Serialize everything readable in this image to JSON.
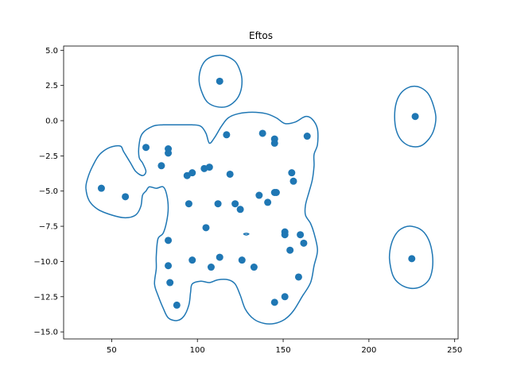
{
  "chart_data": {
    "type": "scatter",
    "title": "Eftos",
    "xlabel": "",
    "ylabel": "",
    "xlim": [
      22,
      252
    ],
    "ylim": [
      -15.5,
      5.3
    ],
    "xticks": [
      50,
      100,
      150,
      200,
      250
    ],
    "yticks": [
      5.0,
      2.5,
      0.0,
      -2.5,
      -5.0,
      -7.5,
      -10.0,
      -12.5,
      -15.0
    ],
    "xtick_labels": [
      "50",
      "100",
      "150",
      "200",
      "250"
    ],
    "ytick_labels": [
      "5.0",
      "2.5",
      "0.0",
      "−2.5",
      "−5.0",
      "−7.5",
      "−10.0",
      "−12.5",
      "−15.0"
    ],
    "grid": false,
    "color": "#1f77b4",
    "points": [
      {
        "x": 113,
        "y": 2.8
      },
      {
        "x": 227,
        "y": 0.3
      },
      {
        "x": 225,
        "y": -9.8
      },
      {
        "x": 44,
        "y": -4.8
      },
      {
        "x": 58,
        "y": -5.4
      },
      {
        "x": 70,
        "y": -1.9
      },
      {
        "x": 83,
        "y": -2.0
      },
      {
        "x": 83,
        "y": -2.3
      },
      {
        "x": 79,
        "y": -3.2
      },
      {
        "x": 94,
        "y": -3.9
      },
      {
        "x": 97,
        "y": -3.7
      },
      {
        "x": 104,
        "y": -3.4
      },
      {
        "x": 107,
        "y": -3.3
      },
      {
        "x": 117,
        "y": -1.0
      },
      {
        "x": 119,
        "y": -3.8
      },
      {
        "x": 138,
        "y": -0.9
      },
      {
        "x": 145,
        "y": -1.3
      },
      {
        "x": 145,
        "y": -1.6
      },
      {
        "x": 164,
        "y": -1.1
      },
      {
        "x": 155,
        "y": -3.7
      },
      {
        "x": 156,
        "y": -4.3
      },
      {
        "x": 136,
        "y": -5.3
      },
      {
        "x": 145,
        "y": -5.1
      },
      {
        "x": 146,
        "y": -5.1
      },
      {
        "x": 141,
        "y": -5.8
      },
      {
        "x": 122,
        "y": -5.9
      },
      {
        "x": 125,
        "y": -6.3
      },
      {
        "x": 112,
        "y": -5.9
      },
      {
        "x": 95,
        "y": -5.9
      },
      {
        "x": 105,
        "y": -7.6
      },
      {
        "x": 83,
        "y": -8.5
      },
      {
        "x": 151,
        "y": -7.9
      },
      {
        "x": 151,
        "y": -8.1
      },
      {
        "x": 160,
        "y": -8.1
      },
      {
        "x": 162,
        "y": -8.7
      },
      {
        "x": 154,
        "y": -9.2
      },
      {
        "x": 113,
        "y": -9.7
      },
      {
        "x": 97,
        "y": -9.9
      },
      {
        "x": 126,
        "y": -9.9
      },
      {
        "x": 108,
        "y": -10.4
      },
      {
        "x": 133,
        "y": -10.4
      },
      {
        "x": 83,
        "y": -10.3
      },
      {
        "x": 159,
        "y": -11.1
      },
      {
        "x": 84,
        "y": -11.5
      },
      {
        "x": 151,
        "y": -12.5
      },
      {
        "x": 145,
        "y": -12.9
      },
      {
        "x": 88,
        "y": -13.1
      }
    ],
    "contours": [
      [
        [
          57,
          -2.2
        ],
        [
          55,
          -1.8
        ],
        [
          49,
          -1.9
        ],
        [
          43,
          -2.4
        ],
        [
          39,
          -3.2
        ],
        [
          36,
          -4.1
        ],
        [
          35,
          -4.8
        ],
        [
          37,
          -5.7
        ],
        [
          42,
          -6.3
        ],
        [
          50,
          -6.7
        ],
        [
          58,
          -6.9
        ],
        [
          64,
          -6.7
        ],
        [
          67,
          -6.1
        ],
        [
          68,
          -5.3
        ],
        [
          70,
          -5.0
        ],
        [
          72,
          -4.7
        ],
        [
          76,
          -4.8
        ],
        [
          80,
          -4.7
        ],
        [
          82,
          -5.2
        ],
        [
          83,
          -6.2
        ],
        [
          82,
          -7.2
        ],
        [
          80,
          -8.0
        ],
        [
          77,
          -8.4
        ],
        [
          76,
          -9.6
        ],
        [
          76,
          -10.5
        ],
        [
          75,
          -11.6
        ],
        [
          77,
          -12.4
        ],
        [
          80,
          -13.3
        ],
        [
          83,
          -14.0
        ],
        [
          88,
          -14.2
        ],
        [
          92,
          -13.9
        ],
        [
          95,
          -13.1
        ],
        [
          96,
          -12.2
        ],
        [
          97,
          -11.6
        ],
        [
          102,
          -11.4
        ],
        [
          107,
          -11.5
        ],
        [
          112,
          -11.3
        ],
        [
          118,
          -11.3
        ],
        [
          122,
          -11.6
        ],
        [
          125,
          -12.4
        ],
        [
          128,
          -13.4
        ],
        [
          133,
          -14.1
        ],
        [
          139,
          -14.4
        ],
        [
          145,
          -14.4
        ],
        [
          151,
          -14.1
        ],
        [
          156,
          -13.5
        ],
        [
          161,
          -12.5
        ],
        [
          166,
          -11.5
        ],
        [
          168,
          -10.3
        ],
        [
          170,
          -9.2
        ],
        [
          168,
          -8.0
        ],
        [
          166,
          -7.3
        ],
        [
          163,
          -6.7
        ],
        [
          163,
          -6.0
        ],
        [
          165,
          -5.1
        ],
        [
          167,
          -4.2
        ],
        [
          168,
          -3.2
        ],
        [
          168,
          -2.4
        ],
        [
          170,
          -1.7
        ],
        [
          170,
          -0.6
        ],
        [
          167,
          0.1
        ],
        [
          163,
          0.3
        ],
        [
          157,
          -0.1
        ],
        [
          151,
          -0.2
        ],
        [
          146,
          0.2
        ],
        [
          140,
          0.5
        ],
        [
          132,
          0.6
        ],
        [
          124,
          0.5
        ],
        [
          118,
          0.2
        ],
        [
          114,
          -0.4
        ],
        [
          110,
          -1.2
        ],
        [
          107,
          -1.6
        ],
        [
          105,
          -0.9
        ],
        [
          102,
          -0.4
        ],
        [
          97,
          -0.3
        ],
        [
          89,
          -0.3
        ],
        [
          80,
          -0.3
        ],
        [
          74,
          -0.4
        ],
        [
          68,
          -0.9
        ],
        [
          66,
          -1.7
        ],
        [
          66,
          -2.6
        ],
        [
          68,
          -3.0
        ],
        [
          70,
          -3.6
        ],
        [
          68,
          -3.9
        ],
        [
          64,
          -3.6
        ],
        [
          61,
          -3.0
        ],
        [
          57,
          -2.2
        ]
      ],
      [
        [
          101,
          2.8
        ],
        [
          102,
          3.7
        ],
        [
          105,
          4.3
        ],
        [
          110,
          4.6
        ],
        [
          116,
          4.6
        ],
        [
          122,
          4.2
        ],
        [
          125,
          3.5
        ],
        [
          126,
          2.8
        ],
        [
          125,
          2.0
        ],
        [
          122,
          1.4
        ],
        [
          117,
          1.0
        ],
        [
          111,
          1.0
        ],
        [
          106,
          1.3
        ],
        [
          103,
          1.9
        ],
        [
          101,
          2.8
        ]
      ],
      [
        [
          215,
          0.3
        ],
        [
          216,
          1.3
        ],
        [
          219,
          2.0
        ],
        [
          224,
          2.4
        ],
        [
          229,
          2.4
        ],
        [
          234,
          2.0
        ],
        [
          237,
          1.3
        ],
        [
          239,
          0.3
        ],
        [
          238,
          -0.6
        ],
        [
          235,
          -1.3
        ],
        [
          230,
          -1.8
        ],
        [
          224,
          -1.8
        ],
        [
          219,
          -1.4
        ],
        [
          216,
          -0.7
        ],
        [
          215,
          0.3
        ]
      ],
      [
        [
          212,
          -9.8
        ],
        [
          213,
          -8.8
        ],
        [
          216,
          -8.0
        ],
        [
          220,
          -7.6
        ],
        [
          225,
          -7.5
        ],
        [
          231,
          -7.8
        ],
        [
          235,
          -8.5
        ],
        [
          237,
          -9.5
        ],
        [
          237,
          -10.5
        ],
        [
          235,
          -11.3
        ],
        [
          230,
          -11.8
        ],
        [
          224,
          -11.9
        ],
        [
          218,
          -11.6
        ],
        [
          214,
          -11.0
        ],
        [
          212,
          -9.8
        ]
      ],
      [
        [
          127,
          -8.05
        ],
        [
          128.5,
          -8.0
        ],
        [
          130,
          -8.05
        ],
        [
          128.5,
          -8.12
        ],
        [
          127,
          -8.05
        ]
      ]
    ]
  }
}
